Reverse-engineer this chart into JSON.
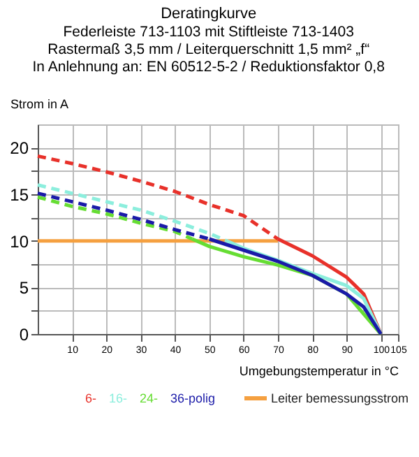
{
  "chart_data": {
    "type": "line",
    "title": "Deratingkurve",
    "subtitle": "Federleiste 713-1103 mit Stiftleiste 713-1403\nRastermaß 3,5 mm / Leiterquerschnitt 1,5 mm² „f“\nIn Anlehnung an: EN 60512-5-2 / Reduktionsfaktor 0,8",
    "ylabel": "Strom in A",
    "xlabel": "Umgebungstemperatur in °C",
    "xlim": [
      0,
      105
    ],
    "ylim": [
      0,
      22.5
    ],
    "xticks": [
      10,
      20,
      30,
      40,
      50,
      60,
      70,
      80,
      90,
      100,
      105
    ],
    "yticks": [
      0,
      {
        "value": 2.5,
        "label": null
      },
      5,
      {
        "value": 7.5,
        "label": null
      },
      10,
      {
        "value": 12.5,
        "label": null
      },
      15,
      {
        "value": 17.5,
        "label": null
      },
      20
    ],
    "grid": true,
    "legend": "bottom",
    "line_style": "solid",
    "marker": "none",
    "series": [
      {
        "name": "Leiter bemessungsstrom",
        "color": "#f5a040",
        "x": [
          0,
          70
        ],
        "values": [
          10,
          10
        ]
      },
      {
        "color": "#e8312a",
        "line_style": "dashed",
        "x": [
          0,
          10,
          20,
          30,
          40,
          50,
          60,
          70
        ],
        "values": [
          19.1,
          18.3,
          17.4,
          16.4,
          15.3,
          13.9,
          12.7,
          10.2
        ]
      },
      {
        "name": "6-",
        "color": "#e8312a",
        "x": [
          70,
          80,
          90,
          95,
          100
        ],
        "values": [
          10.2,
          8.4,
          6.1,
          4.3,
          0
        ]
      },
      {
        "color": "#8ceedd",
        "line_style": "dashed",
        "x": [
          0,
          10,
          20,
          30,
          40,
          50,
          55
        ],
        "values": [
          16.0,
          15.1,
          14.2,
          13.3,
          12.1,
          10.8,
          10.0
        ]
      },
      {
        "name": "16-",
        "color": "#8ceedd",
        "x": [
          55,
          60,
          70,
          80,
          90,
          95,
          100
        ],
        "values": [
          10.0,
          9.2,
          7.9,
          6.5,
          5.2,
          3.8,
          0
        ]
      },
      {
        "color": "#66dd33",
        "line_style": "dashed",
        "x": [
          0,
          10,
          20,
          30,
          40,
          45
        ],
        "values": [
          14.7,
          13.7,
          12.9,
          11.9,
          11.0,
          10.2
        ]
      },
      {
        "name": "24-",
        "color": "#66dd33",
        "x": [
          45,
          50,
          60,
          70,
          80,
          90,
          100
        ],
        "values": [
          10.2,
          9.4,
          8.3,
          7.4,
          6.3,
          4.3,
          0
        ]
      },
      {
        "color": "#1a1aa8",
        "line_style": "dashed",
        "x": [
          0,
          10,
          20,
          30,
          40,
          50
        ],
        "values": [
          15.1,
          14.2,
          13.3,
          12.3,
          11.2,
          10.2
        ]
      },
      {
        "name": "36-polig",
        "color": "#1a1aa8",
        "x": [
          50,
          60,
          70,
          80,
          90,
          95,
          100
        ],
        "values": [
          10.2,
          9.0,
          7.8,
          6.3,
          4.3,
          2.9,
          0
        ]
      }
    ]
  }
}
